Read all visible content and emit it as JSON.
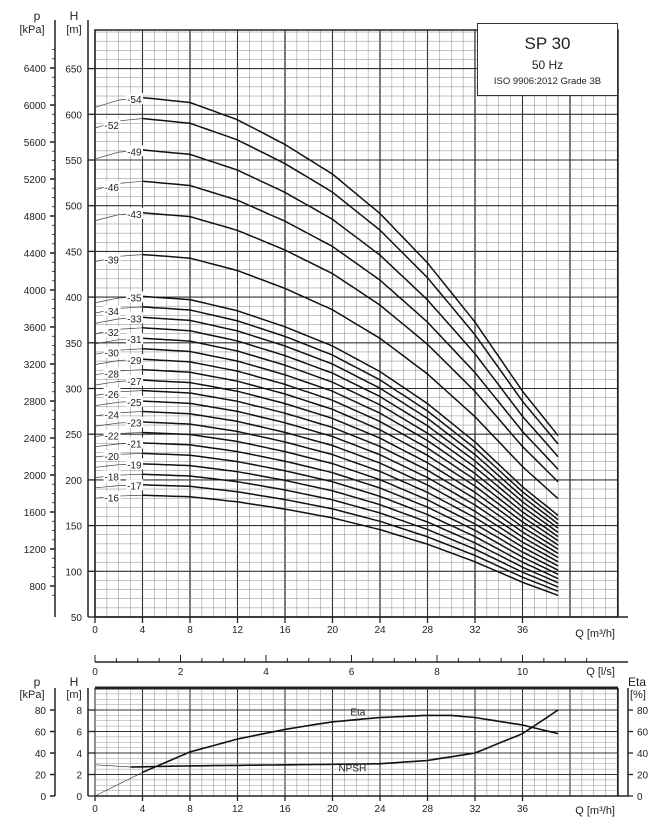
{
  "chart_data": [
    {
      "type": "line",
      "title": "SP 30",
      "subtitle": "50 Hz",
      "standard": "ISO 9906:2012 Grade 3B",
      "xlabel": "Q [m³/h]",
      "ylabel": "H [m]",
      "ylabel2": "p [kPa]",
      "p_label": "p",
      "p_unit": "[kPa]",
      "h_label": "H",
      "h_unit": "[m]",
      "xlim": [
        0,
        44
      ],
      "ylim": [
        50,
        690
      ],
      "x_ticks": [
        "0",
        "4",
        "8",
        "12",
        "16",
        "20",
        "24",
        "28",
        "32",
        "36"
      ],
      "x_tick_values": [
        0,
        4,
        8,
        12,
        16,
        20,
        24,
        28,
        32,
        36
      ],
      "h_ticks": [
        50,
        100,
        150,
        200,
        250,
        300,
        350,
        400,
        450,
        500,
        550,
        600,
        650
      ],
      "p_ticks": [
        800,
        1200,
        1600,
        2000,
        2400,
        2800,
        3200,
        3600,
        4000,
        4400,
        4800,
        5200,
        5600,
        6000,
        6400
      ],
      "grid": true,
      "stages": [
        16,
        17,
        18,
        19,
        20,
        21,
        22,
        23,
        24,
        25,
        26,
        27,
        28,
        29,
        30,
        31,
        32,
        33,
        34,
        35,
        39,
        43,
        46,
        49,
        52,
        54
      ],
      "head_per_stage": {
        "q": [
          0,
          2,
          4,
          8,
          12,
          16,
          20,
          24,
          28,
          32,
          36,
          39
        ],
        "h": [
          11.25,
          11.4,
          11.45,
          11.35,
          11.0,
          10.5,
          9.9,
          9.1,
          8.1,
          6.9,
          5.5,
          4.6
        ]
      }
    },
    {
      "type": "line",
      "xlabel": "Q [m³/h]",
      "xlabel_ls": "Q [l/s]",
      "ls_ticks": [
        "0",
        "2",
        "4",
        "6",
        "8",
        "10"
      ],
      "ls_tick_values": [
        0,
        2,
        4,
        6,
        8,
        10
      ],
      "x_ticks": [
        "0",
        "4",
        "8",
        "12",
        "16",
        "20",
        "24",
        "28",
        "32",
        "36"
      ],
      "x_tick_values": [
        0,
        4,
        8,
        12,
        16,
        20,
        24,
        28,
        32,
        36
      ],
      "p_label": "p",
      "p_unit": "[kPa]",
      "h_label": "H",
      "h_unit": "[m]",
      "eta_label": "Eta",
      "eta_unit": "[%]",
      "h_ticks": [
        "0",
        "2",
        "4",
        "6",
        "8"
      ],
      "p_ticks": [
        "0",
        "20",
        "40",
        "60",
        "80"
      ],
      "eta_ticks": [
        "0",
        "20",
        "40",
        "60",
        "80"
      ],
      "ylim": [
        0,
        9
      ],
      "series": [
        {
          "name": "Eta",
          "unit": "%",
          "q": [
            0,
            4,
            8,
            12,
            16,
            20,
            24,
            28,
            30,
            32,
            36,
            39
          ],
          "values": [
            0,
            22,
            41,
            53,
            62,
            69,
            73,
            75,
            75,
            73,
            66,
            58
          ]
        },
        {
          "name": "NPSH",
          "unit": "m",
          "q": [
            0,
            3,
            8,
            16,
            24,
            28,
            32,
            36,
            39
          ],
          "values": [
            2.9,
            2.7,
            2.8,
            2.9,
            3.0,
            3.3,
            4.0,
            5.8,
            8.0
          ]
        }
      ]
    }
  ]
}
